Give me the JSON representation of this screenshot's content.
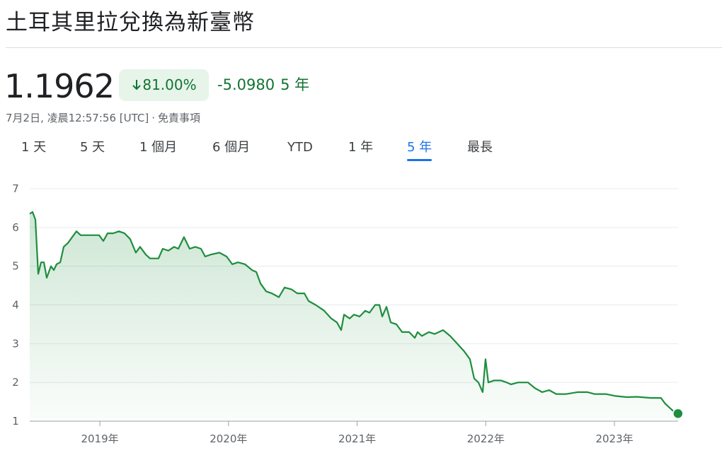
{
  "header": {
    "title": "土耳其里拉兌換為新臺幣",
    "price": "1.1962",
    "change_percent": "81.00%",
    "change": "-5.0980",
    "period": "5 年",
    "timestamp": "7月2日, 凌晨12:57:56 [UTC]",
    "separator": "·",
    "disclaimer": "免責事項"
  },
  "tabs": {
    "items": [
      "1 天",
      "5 天",
      "1 個月",
      "6 個月",
      "YTD",
      "1 年",
      "5 年",
      "最長"
    ],
    "selected": 6
  },
  "chart_data": {
    "type": "line",
    "color": "#1e8e3e",
    "grid": true,
    "xlim": [
      2018.455,
      2023.495
    ],
    "xticks": [
      {
        "value": 2019,
        "label": "2019年"
      },
      {
        "value": 2020,
        "label": "2020年"
      },
      {
        "value": 2021,
        "label": "2021年"
      },
      {
        "value": 2022,
        "label": "2022年"
      },
      {
        "value": 2023,
        "label": "2023年"
      }
    ],
    "ylim": [
      1,
      7
    ],
    "yticks": [
      1,
      2,
      3,
      4,
      5,
      6,
      7
    ],
    "x": [
      2018.455,
      2018.477,
      2018.499,
      2018.521,
      2018.543,
      2018.565,
      2018.587,
      2018.62,
      2018.642,
      2018.664,
      2018.692,
      2018.719,
      2018.752,
      2018.785,
      2018.818,
      2018.851,
      2018.884,
      2018.939,
      2018.994,
      2019.027,
      2019.06,
      2019.104,
      2019.148,
      2019.192,
      2019.236,
      2019.28,
      2019.313,
      2019.357,
      2019.39,
      2019.456,
      2019.489,
      2019.533,
      2019.577,
      2019.61,
      2019.654,
      2019.698,
      2019.742,
      2019.786,
      2019.819,
      2019.863,
      2019.929,
      2019.985,
      2020.029,
      2020.073,
      2020.128,
      2020.183,
      2020.216,
      2020.249,
      2020.293,
      2020.337,
      2020.392,
      2020.436,
      2020.491,
      2020.535,
      2020.59,
      2020.623,
      2020.678,
      2020.744,
      2020.799,
      2020.843,
      2020.876,
      2020.898,
      2020.942,
      2020.975,
      2021.019,
      2021.063,
      2021.096,
      2021.14,
      2021.173,
      2021.195,
      2021.228,
      2021.261,
      2021.305,
      2021.349,
      2021.404,
      2021.448,
      2021.47,
      2021.503,
      2021.558,
      2021.602,
      2021.668,
      2021.723,
      2021.778,
      2021.833,
      2021.877,
      2021.91,
      2021.943,
      2021.976,
      2021.998,
      2022.02,
      2022.064,
      2022.119,
      2022.163,
      2022.196,
      2022.251,
      2022.328,
      2022.383,
      2022.438,
      2022.493,
      2022.548,
      2022.625,
      2022.713,
      2022.79,
      2022.845,
      2022.933,
      2023.01,
      2023.098,
      2023.175,
      2023.285,
      2023.362,
      2023.395,
      2023.428,
      2023.461,
      2023.494
    ],
    "values": [
      6.35,
      6.4,
      6.2,
      4.8,
      5.1,
      5.1,
      4.7,
      5.0,
      4.9,
      5.05,
      5.1,
      5.5,
      5.6,
      5.75,
      5.9,
      5.8,
      5.8,
      5.8,
      5.8,
      5.65,
      5.85,
      5.85,
      5.9,
      5.85,
      5.7,
      5.35,
      5.5,
      5.3,
      5.2,
      5.2,
      5.45,
      5.4,
      5.5,
      5.45,
      5.75,
      5.45,
      5.5,
      5.45,
      5.25,
      5.3,
      5.35,
      5.25,
      5.05,
      5.1,
      5.05,
      4.9,
      4.85,
      4.55,
      4.35,
      4.3,
      4.2,
      4.45,
      4.4,
      4.3,
      4.3,
      4.1,
      4.0,
      3.85,
      3.65,
      3.55,
      3.35,
      3.75,
      3.65,
      3.75,
      3.7,
      3.85,
      3.8,
      4.0,
      4.0,
      3.7,
      3.95,
      3.55,
      3.5,
      3.3,
      3.3,
      3.15,
      3.3,
      3.2,
      3.3,
      3.25,
      3.35,
      3.2,
      3.0,
      2.8,
      2.6,
      2.1,
      2.0,
      1.75,
      2.6,
      2.0,
      2.05,
      2.05,
      2.0,
      1.95,
      2.0,
      2.0,
      1.85,
      1.75,
      1.8,
      1.7,
      1.7,
      1.75,
      1.75,
      1.7,
      1.7,
      1.65,
      1.62,
      1.63,
      1.6,
      1.6,
      1.45,
      1.35,
      1.25,
      1.1962
    ]
  }
}
